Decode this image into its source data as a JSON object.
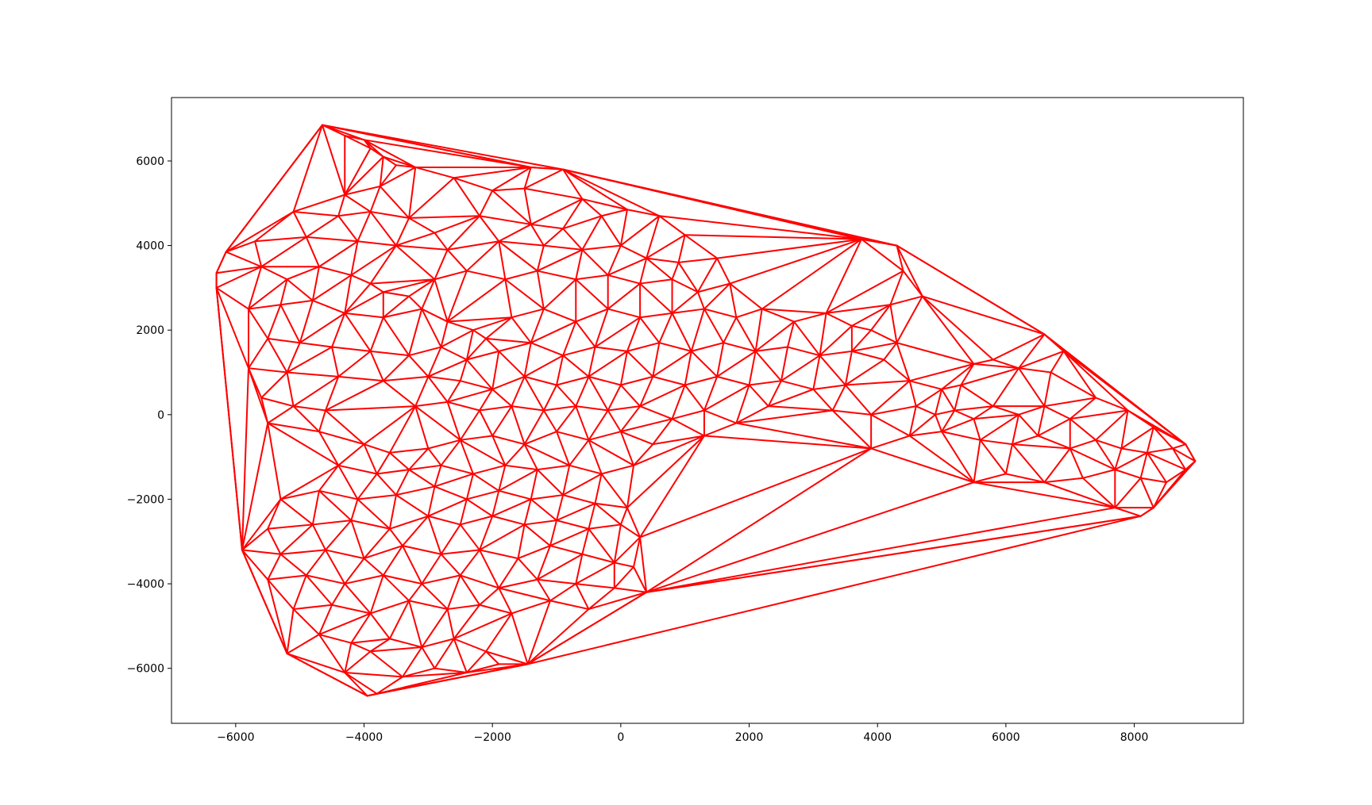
{
  "chart_data": {
    "type": "line",
    "title": "",
    "xlabel": "",
    "ylabel": "",
    "xlim": [
      -7000,
      9700
    ],
    "ylim": [
      -7300,
      7500
    ],
    "grid": false,
    "x_ticks": [
      -6000,
      -4000,
      -2000,
      0,
      2000,
      4000,
      6000,
      8000
    ],
    "y_ticks": [
      -6000,
      -4000,
      -2000,
      0,
      2000,
      4000,
      6000
    ],
    "x_tick_labels": [
      "−6000",
      "−4000",
      "−2000",
      "0",
      "2000",
      "4000",
      "6000",
      "8000"
    ],
    "y_tick_labels": [
      "−6000",
      "−4000",
      "−2000",
      "0",
      "2000",
      "4000",
      "6000"
    ],
    "series": [
      {
        "color": "#ff0000",
        "style": "delaunay-triangulation-edges",
        "hull": [
          [
            -4650,
            6850
          ],
          [
            -1400,
            5850
          ],
          [
            -900,
            5800
          ],
          [
            3750,
            4150
          ],
          [
            4300,
            4000
          ],
          [
            6600,
            1900
          ],
          [
            6900,
            1500
          ],
          [
            8800,
            -700
          ],
          [
            8950,
            -1100
          ],
          [
            8800,
            -1300
          ],
          [
            8300,
            -2200
          ],
          [
            8100,
            -2400
          ],
          [
            400,
            -4200
          ],
          [
            -1450,
            -5900
          ],
          [
            -3800,
            -6600
          ],
          [
            -3950,
            -6650
          ],
          [
            -5200,
            -5650
          ],
          [
            -5900,
            -3200
          ],
          [
            -6300,
            3000
          ],
          [
            -6300,
            3350
          ],
          [
            -6150,
            3850
          ]
        ],
        "points": [
          [
            -4650,
            6850
          ],
          [
            -4300,
            6600
          ],
          [
            -4000,
            6500
          ],
          [
            -3900,
            6300
          ],
          [
            -3700,
            6100
          ],
          [
            -3500,
            5900
          ],
          [
            -3200,
            5850
          ],
          [
            -1400,
            5850
          ],
          [
            -900,
            5800
          ],
          [
            -3750,
            5400
          ],
          [
            -4300,
            5200
          ],
          [
            -2600,
            5600
          ],
          [
            -2000,
            5300
          ],
          [
            -1500,
            5350
          ],
          [
            -600,
            5100
          ],
          [
            -5100,
            4800
          ],
          [
            -4400,
            4700
          ],
          [
            -3900,
            4800
          ],
          [
            -3300,
            4650
          ],
          [
            -2900,
            4300
          ],
          [
            -2200,
            4700
          ],
          [
            -1400,
            4500
          ],
          [
            -900,
            4400
          ],
          [
            -300,
            4700
          ],
          [
            100,
            4850
          ],
          [
            600,
            4700
          ],
          [
            1000,
            4250
          ],
          [
            -5700,
            4100
          ],
          [
            -4900,
            4200
          ],
          [
            -4100,
            4100
          ],
          [
            -3500,
            4000
          ],
          [
            -2700,
            3900
          ],
          [
            -1900,
            4100
          ],
          [
            -1200,
            4000
          ],
          [
            -600,
            3900
          ],
          [
            0,
            4000
          ],
          [
            400,
            3700
          ],
          [
            900,
            3600
          ],
          [
            1500,
            3700
          ],
          [
            -6150,
            3850
          ],
          [
            -6300,
            3350
          ],
          [
            -6300,
            3000
          ],
          [
            -5600,
            3500
          ],
          [
            -5200,
            3200
          ],
          [
            -4700,
            3500
          ],
          [
            -4200,
            3300
          ],
          [
            -3900,
            3100
          ],
          [
            -3700,
            2900
          ],
          [
            -3300,
            2800
          ],
          [
            -2900,
            3200
          ],
          [
            -2400,
            3400
          ],
          [
            -1800,
            3200
          ],
          [
            -1300,
            3400
          ],
          [
            -700,
            3200
          ],
          [
            -200,
            3300
          ],
          [
            300,
            3100
          ],
          [
            800,
            3200
          ],
          [
            1200,
            2900
          ],
          [
            1700,
            3100
          ],
          [
            -5800,
            2500
          ],
          [
            -5300,
            2600
          ],
          [
            -4800,
            2700
          ],
          [
            -4300,
            2400
          ],
          [
            -3700,
            2300
          ],
          [
            -3100,
            2500
          ],
          [
            -2700,
            2200
          ],
          [
            -2300,
            2000
          ],
          [
            -2100,
            1800
          ],
          [
            -1700,
            2300
          ],
          [
            -1200,
            2500
          ],
          [
            -700,
            2200
          ],
          [
            -200,
            2500
          ],
          [
            300,
            2300
          ],
          [
            800,
            2400
          ],
          [
            1300,
            2500
          ],
          [
            1800,
            2300
          ],
          [
            2200,
            2500
          ],
          [
            2700,
            2200
          ],
          [
            3200,
            2400
          ],
          [
            3600,
            2100
          ],
          [
            -5500,
            1800
          ],
          [
            -5000,
            1700
          ],
          [
            -4500,
            1600
          ],
          [
            -3900,
            1500
          ],
          [
            -3300,
            1400
          ],
          [
            -2800,
            1600
          ],
          [
            -2400,
            1300
          ],
          [
            -1900,
            1500
          ],
          [
            -1400,
            1700
          ],
          [
            -900,
            1400
          ],
          [
            -400,
            1600
          ],
          [
            100,
            1500
          ],
          [
            600,
            1700
          ],
          [
            1100,
            1500
          ],
          [
            1600,
            1700
          ],
          [
            2100,
            1500
          ],
          [
            2600,
            1600
          ],
          [
            3100,
            1400
          ],
          [
            3600,
            1500
          ],
          [
            4100,
            1300
          ],
          [
            -5800,
            1100
          ],
          [
            -5200,
            1000
          ],
          [
            -4400,
            900
          ],
          [
            -3700,
            800
          ],
          [
            -3000,
            900
          ],
          [
            -2500,
            800
          ],
          [
            -2000,
            600
          ],
          [
            -1500,
            900
          ],
          [
            -1000,
            700
          ],
          [
            -500,
            900
          ],
          [
            0,
            700
          ],
          [
            500,
            900
          ],
          [
            1000,
            700
          ],
          [
            1500,
            900
          ],
          [
            2000,
            700
          ],
          [
            2500,
            800
          ],
          [
            3000,
            600
          ],
          [
            3500,
            700
          ],
          [
            4500,
            800
          ],
          [
            5000,
            600
          ],
          [
            -5600,
            400
          ],
          [
            -5100,
            200
          ],
          [
            -4600,
            100
          ],
          [
            -3200,
            200
          ],
          [
            -2700,
            300
          ],
          [
            -2200,
            100
          ],
          [
            -1700,
            200
          ],
          [
            -1200,
            100
          ],
          [
            -700,
            200
          ],
          [
            -200,
            100
          ],
          [
            300,
            200
          ],
          [
            800,
            -100
          ],
          [
            1300,
            100
          ],
          [
            1800,
            -200
          ],
          [
            2300,
            200
          ],
          [
            3300,
            100
          ],
          [
            3900,
            0
          ],
          [
            4600,
            200
          ],
          [
            4900,
            0
          ],
          [
            5200,
            100
          ],
          [
            5500,
            -100
          ],
          [
            5800,
            200
          ],
          [
            6200,
            0
          ],
          [
            6600,
            200
          ],
          [
            7000,
            -100
          ],
          [
            -5500,
            -200
          ],
          [
            -4700,
            -400
          ],
          [
            -4000,
            -700
          ],
          [
            -3600,
            -900
          ],
          [
            -3000,
            -800
          ],
          [
            -2500,
            -600
          ],
          [
            -2000,
            -500
          ],
          [
            -1500,
            -700
          ],
          [
            -1000,
            -400
          ],
          [
            -500,
            -600
          ],
          [
            0,
            -400
          ],
          [
            500,
            -700
          ],
          [
            1300,
            -500
          ],
          [
            3900,
            -800
          ],
          [
            4500,
            -500
          ],
          [
            5000,
            -400
          ],
          [
            5600,
            -600
          ],
          [
            6100,
            -700
          ],
          [
            6500,
            -500
          ],
          [
            7000,
            -800
          ],
          [
            7400,
            -600
          ],
          [
            7800,
            -800
          ],
          [
            8200,
            -900
          ],
          [
            8600,
            -800
          ],
          [
            8800,
            -700
          ],
          [
            8950,
            -1100
          ],
          [
            8800,
            -1300
          ],
          [
            -4400,
            -1200
          ],
          [
            -3800,
            -1400
          ],
          [
            -3300,
            -1300
          ],
          [
            -2800,
            -1200
          ],
          [
            -2300,
            -1400
          ],
          [
            -1800,
            -1200
          ],
          [
            -1300,
            -1300
          ],
          [
            -800,
            -1200
          ],
          [
            -300,
            -1400
          ],
          [
            200,
            -1200
          ],
          [
            5500,
            -1600
          ],
          [
            6000,
            -1400
          ],
          [
            6600,
            -1600
          ],
          [
            7200,
            -1500
          ],
          [
            7700,
            -1300
          ],
          [
            8100,
            -1500
          ],
          [
            8500,
            -1600
          ],
          [
            -5300,
            -2000
          ],
          [
            -4700,
            -1800
          ],
          [
            -4100,
            -2000
          ],
          [
            -3500,
            -1900
          ],
          [
            -2900,
            -1700
          ],
          [
            -2400,
            -2000
          ],
          [
            -1900,
            -1800
          ],
          [
            -1400,
            -2000
          ],
          [
            -900,
            -1900
          ],
          [
            -400,
            -2100
          ],
          [
            100,
            -2200
          ],
          [
            7700,
            -2200
          ],
          [
            8300,
            -2200
          ],
          [
            8100,
            -2400
          ],
          [
            -5500,
            -2700
          ],
          [
            -4800,
            -2600
          ],
          [
            -4200,
            -2500
          ],
          [
            -3600,
            -2700
          ],
          [
            -3000,
            -2400
          ],
          [
            -2500,
            -2600
          ],
          [
            -2000,
            -2400
          ],
          [
            -1500,
            -2600
          ],
          [
            -1000,
            -2500
          ],
          [
            -500,
            -2700
          ],
          [
            0,
            -2600
          ],
          [
            300,
            -2900
          ],
          [
            -5900,
            -3200
          ],
          [
            -5300,
            -3300
          ],
          [
            -4600,
            -3200
          ],
          [
            -4000,
            -3400
          ],
          [
            -3400,
            -3100
          ],
          [
            -2800,
            -3300
          ],
          [
            -2200,
            -3200
          ],
          [
            -1600,
            -3400
          ],
          [
            -1100,
            -3100
          ],
          [
            -600,
            -3300
          ],
          [
            -100,
            -3500
          ],
          [
            200,
            -3600
          ],
          [
            -5500,
            -3900
          ],
          [
            -4900,
            -3800
          ],
          [
            -4300,
            -4000
          ],
          [
            -3700,
            -3800
          ],
          [
            -3100,
            -4000
          ],
          [
            -2500,
            -3800
          ],
          [
            -1900,
            -4100
          ],
          [
            -1300,
            -3900
          ],
          [
            -700,
            -4000
          ],
          [
            -100,
            -4100
          ],
          [
            400,
            -4200
          ],
          [
            -5100,
            -4600
          ],
          [
            -4500,
            -4500
          ],
          [
            -3900,
            -4700
          ],
          [
            -3300,
            -4400
          ],
          [
            -2700,
            -4600
          ],
          [
            -2200,
            -4500
          ],
          [
            -1700,
            -4700
          ],
          [
            -1100,
            -4400
          ],
          [
            -500,
            -4600
          ],
          [
            -5200,
            -5650
          ],
          [
            -4700,
            -5200
          ],
          [
            -4200,
            -5400
          ],
          [
            -3900,
            -5600
          ],
          [
            -3600,
            -5300
          ],
          [
            -3100,
            -5500
          ],
          [
            -2600,
            -5300
          ],
          [
            -2100,
            -5600
          ],
          [
            -1450,
            -5900
          ],
          [
            -4300,
            -6100
          ],
          [
            -3800,
            -6600
          ],
          [
            -3950,
            -6650
          ],
          [
            -3400,
            -6200
          ],
          [
            -2900,
            -6000
          ],
          [
            -2400,
            -6100
          ],
          [
            -1900,
            -5900
          ],
          [
            3750,
            4150
          ],
          [
            4300,
            4000
          ],
          [
            4400,
            3400
          ],
          [
            4700,
            2800
          ],
          [
            4200,
            2600
          ],
          [
            3900,
            2000
          ],
          [
            5500,
            1200
          ],
          [
            6600,
            1900
          ],
          [
            6900,
            1500
          ],
          [
            6700,
            1000
          ],
          [
            6200,
            1100
          ],
          [
            5800,
            1300
          ],
          [
            5300,
            700
          ],
          [
            7400,
            400
          ],
          [
            7900,
            100
          ],
          [
            8300,
            -300
          ],
          [
            4300,
            1700
          ]
        ]
      }
    ]
  }
}
